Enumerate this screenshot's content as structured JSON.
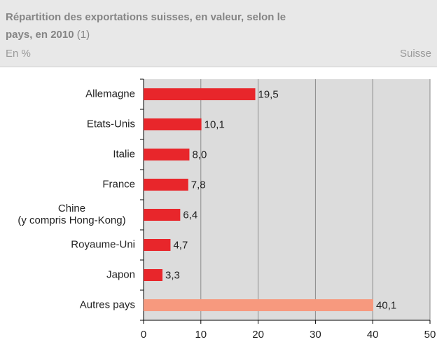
{
  "chart_data": {
    "type": "hbar",
    "title": "Répartition des exportations suisses, en valeur, selon le pays, en 2010",
    "title_note": "(1)",
    "subtitle": "En %",
    "source": "Suisse",
    "categories": [
      "Allemagne",
      "Etats-Unis",
      "Italie",
      "France",
      "Chine\n(y compris Hong-Kong)",
      "Royaume-Uni",
      "Japon",
      "Autres pays"
    ],
    "values": [
      19.5,
      10.1,
      8.0,
      7.8,
      6.4,
      4.7,
      3.3,
      40.1
    ],
    "value_labels": [
      "19,5",
      "10,1",
      "8,0",
      "7,8",
      "6,4",
      "4,7",
      "3,3",
      "40,1"
    ],
    "colors": [
      "#e8262b",
      "#e8262b",
      "#e8262b",
      "#e8262b",
      "#e8262b",
      "#e8262b",
      "#e8262b",
      "#f7997e"
    ],
    "xlim": [
      0,
      50
    ],
    "xticks": [
      0,
      10,
      20,
      30,
      40,
      50
    ],
    "grid": true
  }
}
